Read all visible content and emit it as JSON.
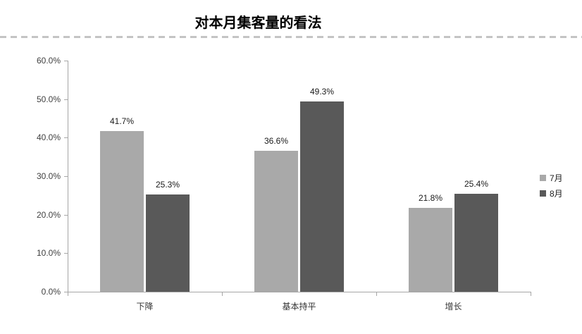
{
  "header": {
    "title": "对本月集客量的看法"
  },
  "chart_data": {
    "type": "bar",
    "title": "对本月集客量的看法",
    "categories": [
      "下降",
      "基本持平",
      "增长"
    ],
    "series": [
      {
        "name": "7月",
        "color": "#a9a9a9",
        "values": [
          41.7,
          36.6,
          21.8
        ],
        "labels": [
          "41.7%",
          "36.6%",
          "21.8%"
        ]
      },
      {
        "name": "8月",
        "color": "#595959",
        "values": [
          25.3,
          49.3,
          25.4
        ],
        "labels": [
          "25.3%",
          "49.3%",
          "25.4%"
        ]
      }
    ],
    "ylim": [
      0,
      60
    ],
    "y_ticks": [
      {
        "value": 0,
        "label": "0.0%"
      },
      {
        "value": 10,
        "label": "10.0%"
      },
      {
        "value": 20,
        "label": "20.0%"
      },
      {
        "value": 30,
        "label": "30.0%"
      },
      {
        "value": 40,
        "label": "40.0%"
      },
      {
        "value": 50,
        "label": "50.0%"
      },
      {
        "value": 60,
        "label": "60.0%"
      }
    ],
    "grid": false,
    "legend_position": "right",
    "colors": {
      "axis": "#a6a6a6",
      "tick_label": "#404040",
      "divider": "#c4c4c4"
    }
  }
}
